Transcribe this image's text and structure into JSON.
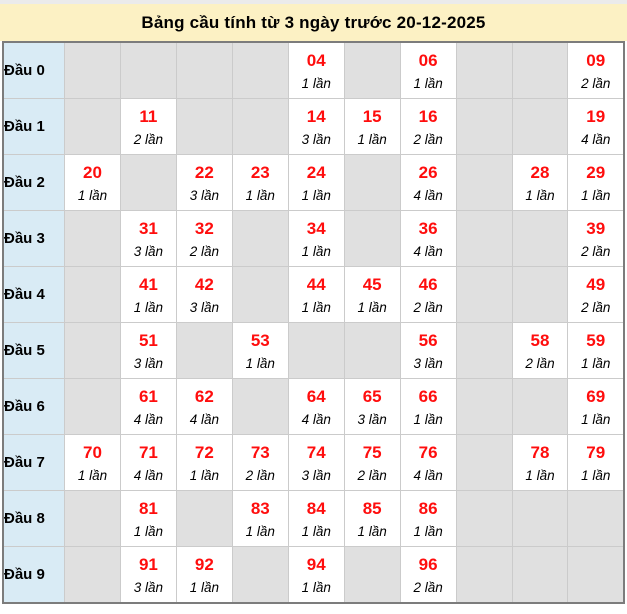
{
  "title": "Bảng cầu tính từ 3 ngày trước 20-12-2025",
  "colors": {
    "title_bg": "#FCF1C4",
    "number_red": "#FF0D0D",
    "label_col_bg": "#D9EBF5",
    "empty_cell_bg": "#E0E0E0",
    "table_border": "#7C7C7C",
    "grid_line": "#CBCBCB"
  },
  "table": {
    "rows": [
      {
        "label": "Đầu 0",
        "cells": [
          null,
          null,
          null,
          null,
          {
            "number": "04",
            "count": "1 lần"
          },
          null,
          {
            "number": "06",
            "count": "1 lần"
          },
          null,
          null,
          {
            "number": "09",
            "count": "2 lần"
          }
        ]
      },
      {
        "label": "Đầu 1",
        "cells": [
          null,
          {
            "number": "11",
            "count": "2 lần"
          },
          null,
          null,
          {
            "number": "14",
            "count": "3 lần"
          },
          {
            "number": "15",
            "count": "1 lần"
          },
          {
            "number": "16",
            "count": "2 lần"
          },
          null,
          null,
          {
            "number": "19",
            "count": "4 lần"
          }
        ]
      },
      {
        "label": "Đầu 2",
        "cells": [
          {
            "number": "20",
            "count": "1 lần"
          },
          null,
          {
            "number": "22",
            "count": "3 lần"
          },
          {
            "number": "23",
            "count": "1 lần"
          },
          {
            "number": "24",
            "count": "1 lần"
          },
          null,
          {
            "number": "26",
            "count": "4 lần"
          },
          null,
          {
            "number": "28",
            "count": "1 lần"
          },
          {
            "number": "29",
            "count": "1 lần"
          }
        ]
      },
      {
        "label": "Đầu 3",
        "cells": [
          null,
          {
            "number": "31",
            "count": "3 lần"
          },
          {
            "number": "32",
            "count": "2 lần"
          },
          null,
          {
            "number": "34",
            "count": "1 lần"
          },
          null,
          {
            "number": "36",
            "count": "4 lần"
          },
          null,
          null,
          {
            "number": "39",
            "count": "2 lần"
          }
        ]
      },
      {
        "label": "Đầu 4",
        "cells": [
          null,
          {
            "number": "41",
            "count": "1 lần"
          },
          {
            "number": "42",
            "count": "3 lần"
          },
          null,
          {
            "number": "44",
            "count": "1 lần"
          },
          {
            "number": "45",
            "count": "1 lần"
          },
          {
            "number": "46",
            "count": "2 lần"
          },
          null,
          null,
          {
            "number": "49",
            "count": "2 lần"
          }
        ]
      },
      {
        "label": "Đầu 5",
        "cells": [
          null,
          {
            "number": "51",
            "count": "3 lần"
          },
          null,
          {
            "number": "53",
            "count": "1 lần"
          },
          null,
          null,
          {
            "number": "56",
            "count": "3 lần"
          },
          null,
          {
            "number": "58",
            "count": "2 lần"
          },
          {
            "number": "59",
            "count": "1 lần"
          }
        ]
      },
      {
        "label": "Đầu 6",
        "cells": [
          null,
          {
            "number": "61",
            "count": "4 lần"
          },
          {
            "number": "62",
            "count": "4 lần"
          },
          null,
          {
            "number": "64",
            "count": "4 lần"
          },
          {
            "number": "65",
            "count": "3 lần"
          },
          {
            "number": "66",
            "count": "1 lần"
          },
          null,
          null,
          {
            "number": "69",
            "count": "1 lần"
          }
        ]
      },
      {
        "label": "Đầu 7",
        "cells": [
          {
            "number": "70",
            "count": "1 lần"
          },
          {
            "number": "71",
            "count": "4 lần"
          },
          {
            "number": "72",
            "count": "1 lần"
          },
          {
            "number": "73",
            "count": "2 lần"
          },
          {
            "number": "74",
            "count": "3 lần"
          },
          {
            "number": "75",
            "count": "2 lần"
          },
          {
            "number": "76",
            "count": "4 lần"
          },
          null,
          {
            "number": "78",
            "count": "1 lần"
          },
          {
            "number": "79",
            "count": "1 lần"
          }
        ]
      },
      {
        "label": "Đầu 8",
        "cells": [
          null,
          {
            "number": "81",
            "count": "1 lần"
          },
          null,
          {
            "number": "83",
            "count": "1 lần"
          },
          {
            "number": "84",
            "count": "1 lần"
          },
          {
            "number": "85",
            "count": "1 lần"
          },
          {
            "number": "86",
            "count": "1 lần"
          },
          null,
          null,
          null
        ]
      },
      {
        "label": "Đầu 9",
        "cells": [
          null,
          {
            "number": "91",
            "count": "3 lần"
          },
          {
            "number": "92",
            "count": "1 lần"
          },
          null,
          {
            "number": "94",
            "count": "1 lần"
          },
          null,
          {
            "number": "96",
            "count": "2 lần"
          },
          null,
          null,
          null
        ]
      }
    ]
  }
}
